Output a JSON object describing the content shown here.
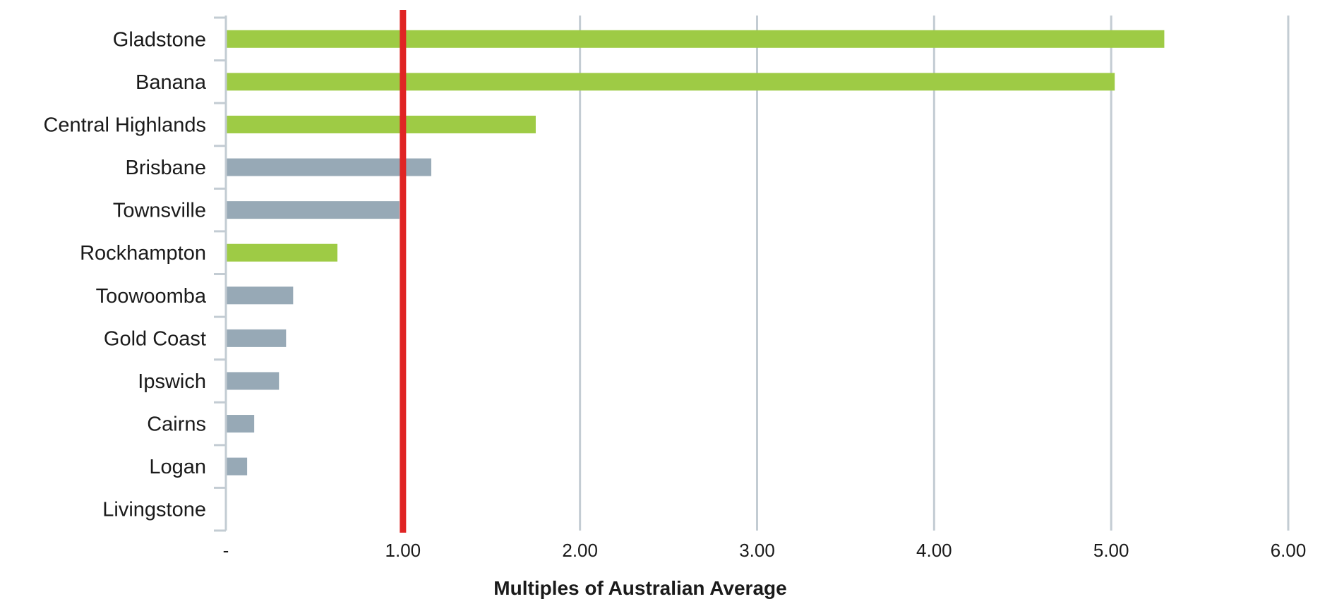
{
  "chart_data": {
    "type": "bar",
    "orientation": "horizontal",
    "title": "",
    "xlabel": "Multiples of Australian Average",
    "ylabel": "",
    "xlim": [
      0,
      6
    ],
    "x_ticks": [
      0,
      1,
      2,
      3,
      4,
      5,
      6
    ],
    "x_tick_labels": [
      "-",
      "1.00",
      "2.00",
      "3.00",
      "4.00",
      "5.00",
      "6.00"
    ],
    "categories": [
      "Gladstone",
      "Banana",
      "Central Highlands",
      "Brisbane",
      "Townsville",
      "Rockhampton",
      "Toowoomba",
      "Gold Coast",
      "Ipswich",
      "Cairns",
      "Logan",
      "Livingstone"
    ],
    "values": [
      5.3,
      5.02,
      1.75,
      1.16,
      0.98,
      0.63,
      0.38,
      0.34,
      0.3,
      0.16,
      0.12,
      0
    ],
    "highlight": [
      true,
      true,
      true,
      false,
      false,
      true,
      false,
      false,
      false,
      false,
      false,
      false
    ],
    "reference_line": {
      "x": 1.0,
      "color": "#e02424"
    },
    "grid": true,
    "legend": "none",
    "colors": {
      "highlight_bar": "#9ecb45",
      "default_bar": "#97a9b6",
      "gridline": "#c3ccd3",
      "axis": "#c3ccd3"
    }
  }
}
